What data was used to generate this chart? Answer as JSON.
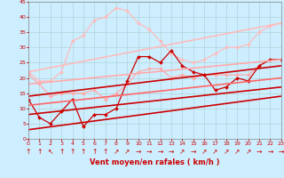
{
  "xlabel": "Vent moyen/en rafales ( km/h )",
  "xlim": [
    0,
    23
  ],
  "ylim": [
    0,
    45
  ],
  "yticks": [
    0,
    5,
    10,
    15,
    20,
    25,
    30,
    35,
    40,
    45
  ],
  "xticks": [
    0,
    1,
    2,
    3,
    4,
    5,
    6,
    7,
    8,
    9,
    10,
    11,
    12,
    13,
    14,
    15,
    16,
    17,
    18,
    19,
    20,
    21,
    22,
    23
  ],
  "background_color": "#cceeff",
  "grid_color": "#aacccc",
  "lines": [
    {
      "x": [
        0,
        1,
        2,
        3,
        4,
        5,
        6,
        7,
        8,
        9,
        10,
        11,
        12,
        13,
        14,
        15,
        16,
        17,
        18,
        19,
        20,
        21,
        22,
        23
      ],
      "y": [
        22,
        19,
        19,
        22,
        32,
        34,
        39,
        40,
        43,
        42,
        38,
        36,
        32,
        28,
        26,
        25,
        26,
        28,
        30,
        30,
        31,
        35,
        37,
        38
      ],
      "color": "#ffbbbb",
      "lw": 0.9,
      "marker": "D",
      "ms": 2.0
    },
    {
      "x": [
        0,
        1,
        2,
        3,
        4,
        5,
        6,
        7,
        8,
        9,
        10,
        11,
        12,
        13,
        14,
        15,
        16,
        17,
        18,
        19,
        20,
        21,
        22,
        23
      ],
      "y": [
        21,
        18,
        14,
        15,
        15,
        15,
        16,
        13,
        15,
        18,
        22,
        23,
        23,
        20,
        21,
        20,
        21,
        21,
        21,
        21,
        21,
        24,
        26,
        26
      ],
      "color": "#ffaaaa",
      "lw": 0.9,
      "marker": "D",
      "ms": 2.0
    },
    {
      "x": [
        0,
        1,
        2,
        3,
        4,
        5,
        6,
        7,
        8,
        9,
        10,
        11,
        12,
        13,
        14,
        15,
        16,
        17,
        18,
        19,
        20,
        21,
        22,
        23
      ],
      "y": [
        13,
        7,
        5,
        9,
        13,
        4,
        8,
        8,
        10,
        19,
        27,
        27,
        25,
        29,
        24,
        22,
        21,
        16,
        17,
        20,
        19,
        24,
        26,
        26
      ],
      "color": "#cc0000",
      "lw": 0.9,
      "marker": "D",
      "ms": 2.0
    },
    {
      "x": [
        0,
        23
      ],
      "y": [
        14,
        24
      ],
      "color": "#cc0000",
      "lw": 1.2,
      "marker": null,
      "ms": 0
    },
    {
      "x": [
        0,
        23
      ],
      "y": [
        8,
        17
      ],
      "color": "#cc0000",
      "lw": 1.2,
      "marker": null,
      "ms": 0
    },
    {
      "x": [
        0,
        23
      ],
      "y": [
        3,
        14
      ],
      "color": "#cc0000",
      "lw": 1.2,
      "marker": null,
      "ms": 0
    },
    {
      "x": [
        0,
        23
      ],
      "y": [
        11,
        20
      ],
      "color": "#ff6666",
      "lw": 1.2,
      "marker": null,
      "ms": 0
    },
    {
      "x": [
        0,
        23
      ],
      "y": [
        18,
        26
      ],
      "color": "#ffaaaa",
      "lw": 1.2,
      "marker": null,
      "ms": 0
    },
    {
      "x": [
        0,
        23
      ],
      "y": [
        22,
        38
      ],
      "color": "#ffbbbb",
      "lw": 1.2,
      "marker": null,
      "ms": 0
    }
  ],
  "arrows": [
    "↑",
    "↑",
    "↖",
    "↑",
    "↑",
    "↑",
    "↑",
    "↑",
    "↗",
    "↗",
    "→",
    "→",
    "→",
    "→",
    "↗",
    "→",
    "↗",
    "↗",
    "↗",
    "↗",
    "↗",
    "→",
    "→",
    "→"
  ],
  "arrow_color": "#cc0000",
  "arrow_fontsize": 5.5,
  "tick_color": "#cc0000",
  "xlabel_color": "#cc0000",
  "xlabel_fontsize": 6.0
}
